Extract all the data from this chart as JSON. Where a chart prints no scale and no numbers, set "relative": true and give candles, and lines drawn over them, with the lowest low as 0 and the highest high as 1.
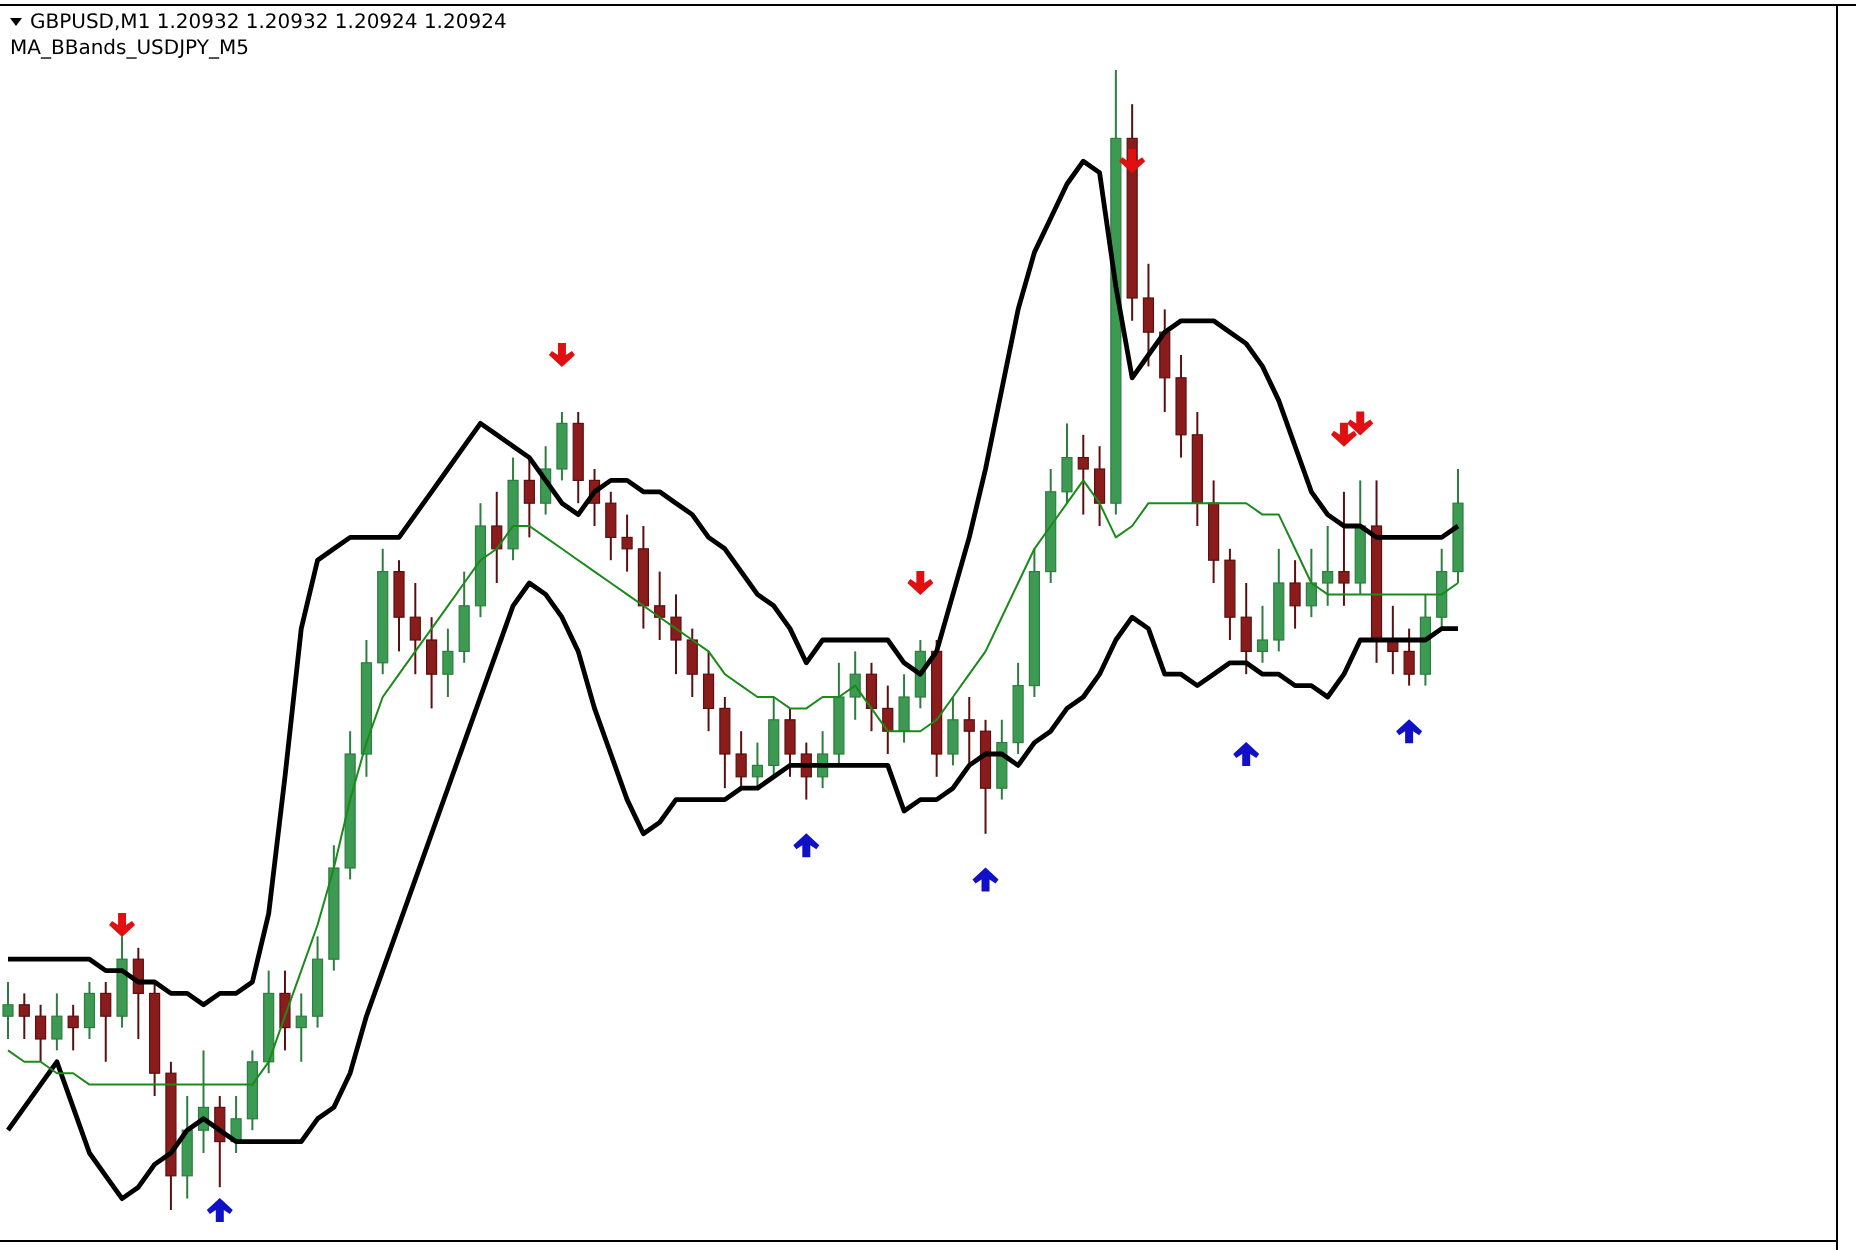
{
  "chart_data": {
    "type": "candlestick",
    "title": "GBPUSD,M1  1.20932 1.20932 1.20924 1.20924",
    "subtitle": "MA_BBands_USDJPY_M5",
    "relative": true,
    "grid": false,
    "categories": [
      null,
      null,
      null,
      null,
      null,
      null,
      null,
      null,
      null,
      null,
      null,
      null,
      null,
      null,
      null,
      null,
      null,
      null,
      null,
      null,
      null,
      null,
      null,
      null,
      null,
      null,
      null,
      null,
      null,
      null,
      null,
      null,
      null,
      null,
      null,
      null,
      null,
      null,
      null,
      null,
      null,
      null,
      null,
      null,
      null,
      null,
      null,
      null,
      null,
      null,
      null,
      null,
      null,
      null,
      null,
      null,
      null,
      null,
      null,
      null,
      null,
      null,
      null,
      null,
      null,
      null,
      null,
      null,
      null,
      null,
      null,
      null,
      null,
      null,
      null,
      null,
      null,
      null,
      null,
      null,
      null,
      null,
      null,
      null,
      null,
      null,
      null,
      null,
      null,
      null
    ],
    "ohlc": [
      [
        0.17,
        0.2,
        0.15,
        0.18
      ],
      [
        0.18,
        0.19,
        0.15,
        0.17
      ],
      [
        0.17,
        0.18,
        0.13,
        0.15
      ],
      [
        0.15,
        0.19,
        0.14,
        0.17
      ],
      [
        0.17,
        0.18,
        0.14,
        0.16
      ],
      [
        0.16,
        0.2,
        0.15,
        0.19
      ],
      [
        0.19,
        0.2,
        0.13,
        0.17
      ],
      [
        0.17,
        0.24,
        0.16,
        0.22
      ],
      [
        0.22,
        0.23,
        0.15,
        0.19
      ],
      [
        0.19,
        0.2,
        0.1,
        0.12
      ],
      [
        0.12,
        0.13,
        0,
        0.03
      ],
      [
        0.03,
        0.1,
        0.01,
        0.07
      ],
      [
        0.07,
        0.14,
        0.05,
        0.09
      ],
      [
        0.09,
        0.1,
        0.02,
        0.06
      ],
      [
        0.06,
        0.1,
        0.05,
        0.08
      ],
      [
        0.08,
        0.14,
        0.07,
        0.13
      ],
      [
        0.13,
        0.21,
        0.12,
        0.19
      ],
      [
        0.19,
        0.21,
        0.14,
        0.16
      ],
      [
        0.16,
        0.19,
        0.13,
        0.17
      ],
      [
        0.17,
        0.24,
        0.16,
        0.22
      ],
      [
        0.22,
        0.32,
        0.21,
        0.3
      ],
      [
        0.3,
        0.42,
        0.29,
        0.4
      ],
      [
        0.4,
        0.5,
        0.38,
        0.48
      ],
      [
        0.48,
        0.58,
        0.47,
        0.56
      ],
      [
        0.56,
        0.57,
        0.49,
        0.52
      ],
      [
        0.52,
        0.55,
        0.47,
        0.5
      ],
      [
        0.5,
        0.52,
        0.44,
        0.47
      ],
      [
        0.47,
        0.51,
        0.45,
        0.49
      ],
      [
        0.49,
        0.56,
        0.48,
        0.53
      ],
      [
        0.53,
        0.62,
        0.52,
        0.6
      ],
      [
        0.6,
        0.63,
        0.55,
        0.58
      ],
      [
        0.58,
        0.66,
        0.57,
        0.64
      ],
      [
        0.64,
        0.66,
        0.59,
        0.62
      ],
      [
        0.62,
        0.67,
        0.61,
        0.65
      ],
      [
        0.65,
        0.7,
        0.64,
        0.69
      ],
      [
        0.69,
        0.7,
        0.62,
        0.64
      ],
      [
        0.64,
        0.65,
        0.6,
        0.62
      ],
      [
        0.62,
        0.63,
        0.57,
        0.59
      ],
      [
        0.59,
        0.61,
        0.56,
        0.58
      ],
      [
        0.58,
        0.6,
        0.51,
        0.53
      ],
      [
        0.53,
        0.56,
        0.5,
        0.52
      ],
      [
        0.52,
        0.54,
        0.47,
        0.5
      ],
      [
        0.5,
        0.51,
        0.45,
        0.47
      ],
      [
        0.47,
        0.49,
        0.42,
        0.44
      ],
      [
        0.44,
        0.45,
        0.37,
        0.4
      ],
      [
        0.4,
        0.42,
        0.37,
        0.38
      ],
      [
        0.38,
        0.41,
        0.37,
        0.39
      ],
      [
        0.39,
        0.45,
        0.38,
        0.43
      ],
      [
        0.43,
        0.44,
        0.38,
        0.4
      ],
      [
        0.4,
        0.41,
        0.36,
        0.38
      ],
      [
        0.38,
        0.42,
        0.37,
        0.4
      ],
      [
        0.4,
        0.48,
        0.39,
        0.45
      ],
      [
        0.45,
        0.49,
        0.43,
        0.47
      ],
      [
        0.47,
        0.48,
        0.42,
        0.44
      ],
      [
        0.44,
        0.46,
        0.4,
        0.42
      ],
      [
        0.42,
        0.47,
        0.41,
        0.45
      ],
      [
        0.45,
        0.5,
        0.44,
        0.49
      ],
      [
        0.49,
        0.5,
        0.38,
        0.4
      ],
      [
        0.4,
        0.45,
        0.39,
        0.43
      ],
      [
        0.43,
        0.45,
        0.39,
        0.42
      ],
      [
        0.42,
        0.43,
        0.33,
        0.37
      ],
      [
        0.37,
        0.43,
        0.36,
        0.41
      ],
      [
        0.41,
        0.48,
        0.4,
        0.46
      ],
      [
        0.46,
        0.58,
        0.45,
        0.56
      ],
      [
        0.56,
        0.65,
        0.55,
        0.63
      ],
      [
        0.63,
        0.69,
        0.62,
        0.66
      ],
      [
        0.66,
        0.68,
        0.61,
        0.65
      ],
      [
        0.65,
        0.67,
        0.6,
        0.62
      ],
      [
        0.62,
        1,
        0.61,
        0.94
      ],
      [
        0.94,
        0.97,
        0.78,
        0.8
      ],
      [
        0.8,
        0.83,
        0.74,
        0.77
      ],
      [
        0.77,
        0.79,
        0.7,
        0.73
      ],
      [
        0.73,
        0.75,
        0.66,
        0.68
      ],
      [
        0.68,
        0.7,
        0.6,
        0.62
      ],
      [
        0.62,
        0.64,
        0.55,
        0.57
      ],
      [
        0.57,
        0.58,
        0.5,
        0.52
      ],
      [
        0.52,
        0.55,
        0.47,
        0.49
      ],
      [
        0.49,
        0.53,
        0.48,
        0.5
      ],
      [
        0.5,
        0.58,
        0.49,
        0.55
      ],
      [
        0.55,
        0.57,
        0.51,
        0.53
      ],
      [
        0.53,
        0.58,
        0.52,
        0.55
      ],
      [
        0.55,
        0.6,
        0.53,
        0.56
      ],
      [
        0.56,
        0.63,
        0.53,
        0.55
      ],
      [
        0.55,
        0.64,
        0.54,
        0.6
      ],
      [
        0.6,
        0.64,
        0.48,
        0.5
      ],
      [
        0.5,
        0.53,
        0.47,
        0.49
      ],
      [
        0.49,
        0.51,
        0.46,
        0.47
      ],
      [
        0.47,
        0.54,
        0.46,
        0.52
      ],
      [
        0.52,
        0.58,
        0.51,
        0.56
      ],
      [
        0.56,
        0.65,
        0.55,
        0.62
      ]
    ],
    "series": [
      {
        "type": "line",
        "color": "#000000",
        "values": [
          0.22,
          0.22,
          0.22,
          0.22,
          0.22,
          0.22,
          0.21,
          0.21,
          0.2,
          0.2,
          0.19,
          0.19,
          0.18,
          0.19,
          0.19,
          0.2,
          0.26,
          0.38,
          0.51,
          0.57,
          0.58,
          0.59,
          0.59,
          0.59,
          0.59,
          0.61,
          0.63,
          0.65,
          0.67,
          0.69,
          0.68,
          0.67,
          0.66,
          0.64,
          0.62,
          0.61,
          0.63,
          0.64,
          0.64,
          0.63,
          0.63,
          0.62,
          0.61,
          0.59,
          0.58,
          0.56,
          0.54,
          0.53,
          0.51,
          0.48,
          0.5,
          0.5,
          0.5,
          0.5,
          0.5,
          0.48,
          0.47,
          0.49,
          0.54,
          0.59,
          0.65,
          0.72,
          0.79,
          0.84,
          0.87,
          0.9,
          0.92,
          0.91,
          0.81,
          0.73,
          0.75,
          0.77,
          0.78,
          0.78,
          0.78,
          0.77,
          0.76,
          0.74,
          0.71,
          0.67,
          0.63,
          0.61,
          0.6,
          0.6,
          0.59,
          0.59,
          0.59,
          0.59,
          0.59,
          0.6
        ]
      },
      {
        "type": "line",
        "color": "#000000",
        "values": [
          0.07,
          0.09,
          0.11,
          0.13,
          0.09,
          0.05,
          0.03,
          0.01,
          0.02,
          0.04,
          0.05,
          0.07,
          0.08,
          0.07,
          0.06,
          0.06,
          0.06,
          0.06,
          0.06,
          0.08,
          0.09,
          0.12,
          0.17,
          0.21,
          0.25,
          0.29,
          0.33,
          0.37,
          0.41,
          0.45,
          0.49,
          0.53,
          0.55,
          0.54,
          0.52,
          0.49,
          0.44,
          0.4,
          0.36,
          0.33,
          0.34,
          0.36,
          0.36,
          0.36,
          0.36,
          0.37,
          0.37,
          0.38,
          0.39,
          0.39,
          0.39,
          0.39,
          0.39,
          0.39,
          0.39,
          0.35,
          0.36,
          0.36,
          0.37,
          0.39,
          0.4,
          0.4,
          0.39,
          0.41,
          0.42,
          0.44,
          0.45,
          0.47,
          0.5,
          0.52,
          0.51,
          0.47,
          0.47,
          0.46,
          0.47,
          0.48,
          0.48,
          0.47,
          0.47,
          0.46,
          0.46,
          0.45,
          0.47,
          0.5,
          0.5,
          0.5,
          0.5,
          0.5,
          0.51,
          0.51
        ]
      },
      {
        "type": "line",
        "color": "#1a8a1a",
        "values": [
          0.14,
          0.13,
          0.13,
          0.12,
          0.12,
          0.11,
          0.11,
          0.11,
          0.11,
          0.11,
          0.11,
          0.11,
          0.11,
          0.11,
          0.11,
          0.11,
          0.13,
          0.17,
          0.21,
          0.25,
          0.3,
          0.36,
          0.41,
          0.45,
          0.47,
          0.49,
          0.51,
          0.53,
          0.55,
          0.57,
          0.58,
          0.6,
          0.6,
          0.59,
          0.58,
          0.57,
          0.56,
          0.55,
          0.54,
          0.53,
          0.52,
          0.51,
          0.5,
          0.49,
          0.47,
          0.46,
          0.45,
          0.45,
          0.44,
          0.44,
          0.45,
          0.45,
          0.46,
          0.44,
          0.42,
          0.42,
          0.42,
          0.43,
          0.45,
          0.47,
          0.49,
          0.52,
          0.55,
          0.58,
          0.6,
          0.62,
          0.64,
          0.62,
          0.59,
          0.6,
          0.62,
          0.62,
          0.62,
          0.62,
          0.62,
          0.62,
          0.62,
          0.61,
          0.61,
          0.58,
          0.55,
          0.54,
          0.54,
          0.54,
          0.54,
          0.54,
          0.54,
          0.54,
          0.54,
          0.55
        ]
      },
      {
        "type": "scatter",
        "color": "#e01010",
        "marker": "triangle",
        "values": [
          null,
          null,
          null,
          null,
          null,
          null,
          null,
          0.25,
          null,
          null,
          null,
          null,
          null,
          null,
          null,
          null,
          null,
          null,
          null,
          null,
          null,
          null,
          null,
          null,
          null,
          null,
          null,
          null,
          null,
          null,
          null,
          null,
          null,
          null,
          0.75,
          null,
          null,
          null,
          null,
          null,
          null,
          null,
          null,
          null,
          null,
          null,
          null,
          null,
          null,
          null,
          null,
          null,
          null,
          null,
          null,
          null,
          0.55,
          null,
          null,
          null,
          null,
          null,
          null,
          null,
          null,
          null,
          null,
          null,
          null,
          0.92,
          null,
          null,
          null,
          null,
          null,
          null,
          null,
          null,
          null,
          null,
          null,
          null,
          0.68,
          0.69,
          null,
          null,
          null,
          null,
          null,
          null
        ]
      },
      {
        "type": "scatter",
        "color": "#1010c8",
        "marker": "triangle",
        "values": [
          null,
          null,
          null,
          null,
          null,
          null,
          null,
          null,
          null,
          null,
          null,
          null,
          null,
          0,
          null,
          null,
          null,
          null,
          null,
          null,
          null,
          null,
          null,
          null,
          null,
          null,
          null,
          null,
          null,
          null,
          null,
          null,
          null,
          null,
          null,
          null,
          null,
          null,
          null,
          null,
          null,
          null,
          null,
          null,
          null,
          null,
          null,
          null,
          null,
          0.32,
          null,
          null,
          null,
          null,
          null,
          null,
          null,
          null,
          null,
          null,
          0.29,
          null,
          null,
          null,
          null,
          null,
          null,
          null,
          null,
          null,
          null,
          null,
          null,
          null,
          null,
          null,
          0.4,
          null,
          null,
          null,
          null,
          null,
          null,
          null,
          null,
          null,
          0.42,
          null,
          null,
          null
        ]
      }
    ]
  }
}
